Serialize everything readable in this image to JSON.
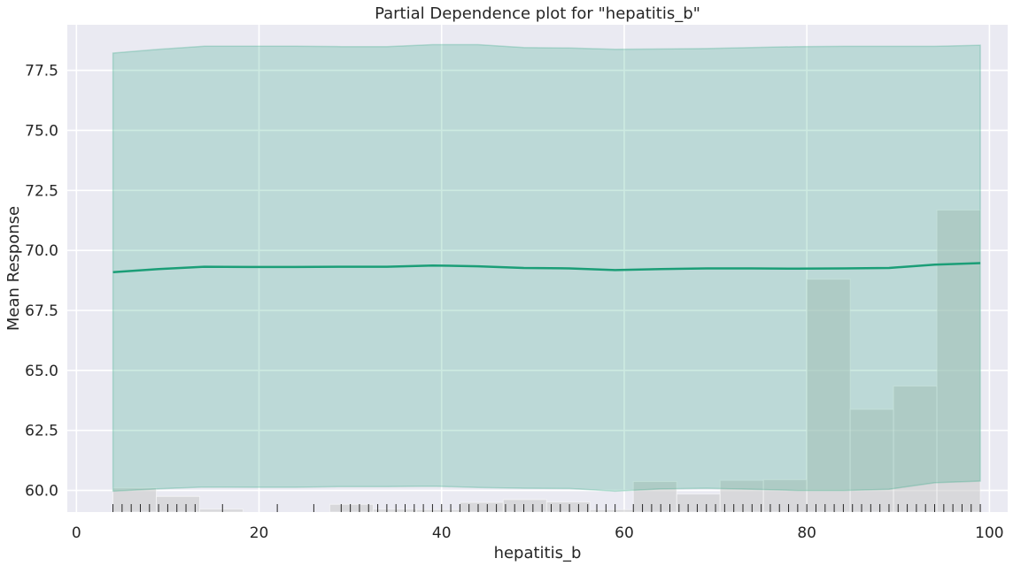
{
  "chart_data": {
    "type": "line",
    "title": "Partial Dependence plot for \"hepatitis_b\"",
    "xlabel": "hepatitis_b",
    "ylabel": "Mean Response",
    "xlim": [
      -1,
      102
    ],
    "ylim": [
      59.1,
      79.4
    ],
    "x_ticks": [
      "0",
      "20",
      "40",
      "60",
      "80",
      "100"
    ],
    "y_ticks": [
      "60.0",
      "62.5",
      "65.0",
      "67.5",
      "70.0",
      "72.5",
      "75.0",
      "77.5"
    ],
    "grid": true,
    "colors": {
      "background": "#eaeaf2",
      "grid": "#ffffff",
      "line": "#1b9e77",
      "band": "#1b9e77",
      "histogram": "#c8c8c8",
      "rug": "#262626"
    },
    "series": [
      {
        "x": [
          4,
          9,
          14,
          19,
          24,
          29,
          34,
          39,
          44,
          49,
          54,
          59,
          64,
          69,
          74,
          79,
          84,
          89,
          94,
          99
        ],
        "mean": [
          69.09,
          69.22,
          69.32,
          69.31,
          69.31,
          69.32,
          69.32,
          69.37,
          69.34,
          69.27,
          69.25,
          69.18,
          69.22,
          69.25,
          69.25,
          69.24,
          69.25,
          69.27,
          69.41,
          69.47
        ],
        "upper": [
          78.22,
          78.38,
          78.51,
          78.51,
          78.51,
          78.49,
          78.49,
          78.57,
          78.57,
          78.45,
          78.43,
          78.38,
          78.39,
          78.41,
          78.45,
          78.49,
          78.5,
          78.5,
          78.5,
          78.55
        ],
        "lower": [
          59.97,
          60.07,
          60.14,
          60.13,
          60.13,
          60.16,
          60.16,
          60.18,
          60.12,
          60.09,
          60.08,
          59.97,
          60.06,
          60.09,
          60.05,
          60.0,
          60.0,
          60.05,
          60.32,
          60.39
        ]
      }
    ],
    "histogram": {
      "bin_edges": [
        4,
        8.75,
        13.5,
        18.25,
        23,
        27.75,
        32.5,
        37.25,
        42,
        46.75,
        51.5,
        56.25,
        61,
        65.75,
        70.5,
        75.25,
        80,
        84.75,
        89.5,
        94.25,
        99
      ],
      "heights": [
        60.1,
        59.75,
        59.22,
        59.1,
        59.1,
        59.42,
        59.22,
        59.2,
        59.5,
        59.62,
        59.52,
        59.2,
        60.37,
        59.85,
        60.42,
        60.45,
        68.8,
        63.38,
        64.35,
        71.68
      ]
    },
    "rug": [
      4,
      5,
      6,
      7,
      8,
      9,
      10,
      11,
      12,
      13,
      16,
      22,
      26,
      29,
      30,
      31,
      32,
      33,
      34,
      35,
      36,
      37,
      38,
      39,
      40,
      41,
      42,
      43,
      44,
      45,
      46,
      47,
      48,
      49,
      50,
      51,
      52,
      53,
      54,
      55,
      56,
      57,
      58,
      59,
      61,
      62,
      63,
      64,
      65,
      66,
      67,
      68,
      69,
      70,
      71,
      72,
      73,
      74,
      75,
      76,
      77,
      78,
      79,
      80,
      81,
      82,
      83,
      84,
      85,
      86,
      87,
      88,
      89,
      90,
      91,
      92,
      93,
      94,
      95,
      96,
      97,
      98,
      99
    ]
  }
}
